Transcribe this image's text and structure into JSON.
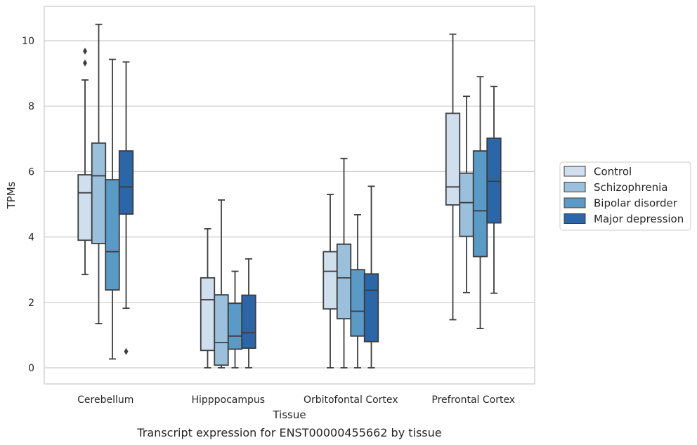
{
  "chart_data": {
    "type": "box",
    "caption": "Transcript expression for ENST00000455662 by tissue",
    "xlabel": "Tissue",
    "ylabel": "TPMs",
    "ylim": [
      -0.5,
      11
    ],
    "yticks": [
      0,
      2,
      4,
      6,
      8,
      10
    ],
    "grid": "horizontal",
    "legend_position": "right",
    "categories": [
      "Cerebellum",
      "Hipppocampus",
      "Orbitofontal Cortex",
      "Prefrontal Cortex"
    ],
    "series": [
      {
        "name": "Control",
        "color": "#d0dfee",
        "boxes": [
          {
            "whisker_low": 2.85,
            "q1": 3.9,
            "median": 5.35,
            "q3": 5.9,
            "whisker_high": 8.8,
            "outliers": [
              9.32,
              9.68
            ]
          },
          {
            "whisker_low": 0.0,
            "q1": 0.53,
            "median": 2.08,
            "q3": 2.75,
            "whisker_high": 4.25,
            "outliers": []
          },
          {
            "whisker_low": 0.0,
            "q1": 1.8,
            "median": 2.95,
            "q3": 3.55,
            "whisker_high": 5.3,
            "outliers": []
          },
          {
            "whisker_low": 1.47,
            "q1": 4.98,
            "median": 5.53,
            "q3": 7.78,
            "whisker_high": 10.2,
            "outliers": []
          }
        ]
      },
      {
        "name": "Schizophrenia",
        "color": "#9ac0dc",
        "boxes": [
          {
            "whisker_low": 1.35,
            "q1": 3.8,
            "median": 5.87,
            "q3": 6.87,
            "whisker_high": 10.5,
            "outliers": []
          },
          {
            "whisker_low": 0.0,
            "q1": 0.08,
            "median": 0.77,
            "q3": 2.23,
            "whisker_high": 5.13,
            "outliers": []
          },
          {
            "whisker_low": 0.0,
            "q1": 1.5,
            "median": 2.75,
            "q3": 3.78,
            "whisker_high": 6.4,
            "outliers": []
          },
          {
            "whisker_low": 2.3,
            "q1": 4.02,
            "median": 5.05,
            "q3": 5.95,
            "whisker_high": 8.3,
            "outliers": []
          }
        ]
      },
      {
        "name": "Bipolar disorder",
        "color": "#5a9ac7",
        "boxes": [
          {
            "whisker_low": 0.27,
            "q1": 2.38,
            "median": 3.55,
            "q3": 5.75,
            "whisker_high": 9.43,
            "outliers": []
          },
          {
            "whisker_low": 0.0,
            "q1": 0.57,
            "median": 0.97,
            "q3": 1.97,
            "whisker_high": 2.95,
            "outliers": []
          },
          {
            "whisker_low": 0.0,
            "q1": 0.97,
            "median": 1.73,
            "q3": 3.0,
            "whisker_high": 4.68,
            "outliers": []
          },
          {
            "whisker_low": 1.2,
            "q1": 3.4,
            "median": 4.8,
            "q3": 6.63,
            "whisker_high": 8.9,
            "outliers": []
          }
        ]
      },
      {
        "name": "Major depression",
        "color": "#2a66a8",
        "boxes": [
          {
            "whisker_low": 1.82,
            "q1": 4.7,
            "median": 5.53,
            "q3": 6.63,
            "whisker_high": 9.35,
            "outliers": [
              0.5
            ]
          },
          {
            "whisker_low": 0.0,
            "q1": 0.6,
            "median": 1.07,
            "q3": 2.22,
            "whisker_high": 3.33,
            "outliers": []
          },
          {
            "whisker_low": 0.0,
            "q1": 0.8,
            "median": 2.37,
            "q3": 2.87,
            "whisker_high": 5.55,
            "outliers": []
          },
          {
            "whisker_low": 2.28,
            "q1": 4.43,
            "median": 5.7,
            "q3": 7.02,
            "whisker_high": 8.6,
            "outliers": []
          }
        ]
      }
    ]
  },
  "colors": {
    "grid": "#cccccc",
    "frame": "#cccccc",
    "stroke": "#3d3d3d",
    "text": "#262626"
  }
}
